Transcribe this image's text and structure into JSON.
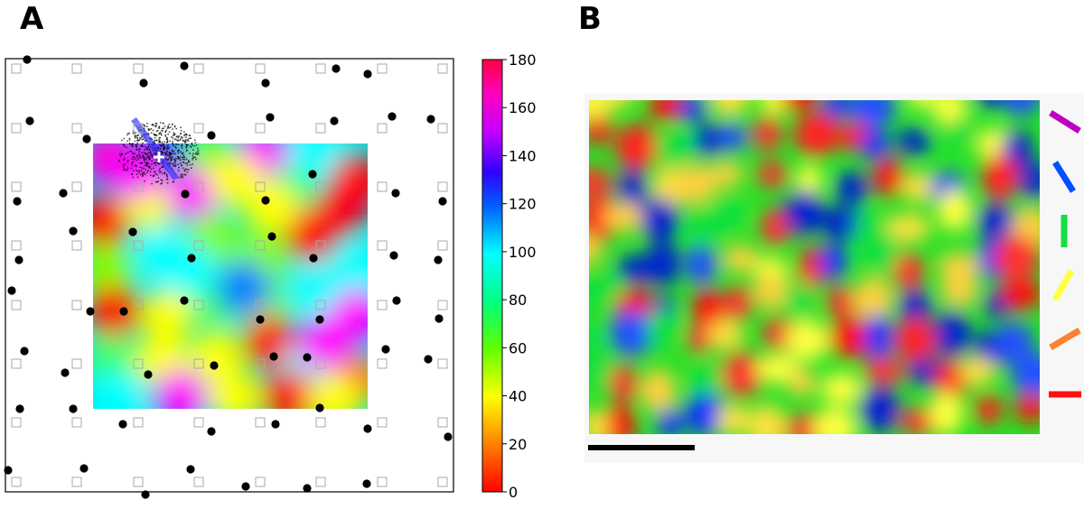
{
  "panels": {
    "a_label": "A",
    "b_label": "B"
  },
  "chart_data": [
    {
      "type": "heatmap",
      "panel": "A",
      "description_of_marks": "orientation preference map with overlaid grid markers, dots and a scatter cloud",
      "colorbar": {
        "ticks": [
          0,
          20,
          40,
          60,
          80,
          100,
          120,
          140,
          160,
          180
        ],
        "range": [
          0,
          180
        ],
        "colors": [
          "#ff0000",
          "#ff8000",
          "#ffff00",
          "#80ff00",
          "#00ff00",
          "#00ffff",
          "#0080ff",
          "#0000ff",
          "#8000ff",
          "#ff00ff",
          "#ff0040"
        ]
      },
      "markers": {
        "square_color": "#bbbbbb",
        "dot_color": "#000000",
        "cross_color": "#ffffff",
        "line_color": "#3a3aff"
      }
    },
    {
      "type": "heatmap",
      "panel": "B",
      "legend_bar_colors": [
        "#c000c0",
        "#0050ff",
        "#10e040",
        "#ffff40",
        "#ff8030",
        "#ff1010"
      ],
      "scale_bar": {
        "color": "#000000"
      }
    }
  ]
}
